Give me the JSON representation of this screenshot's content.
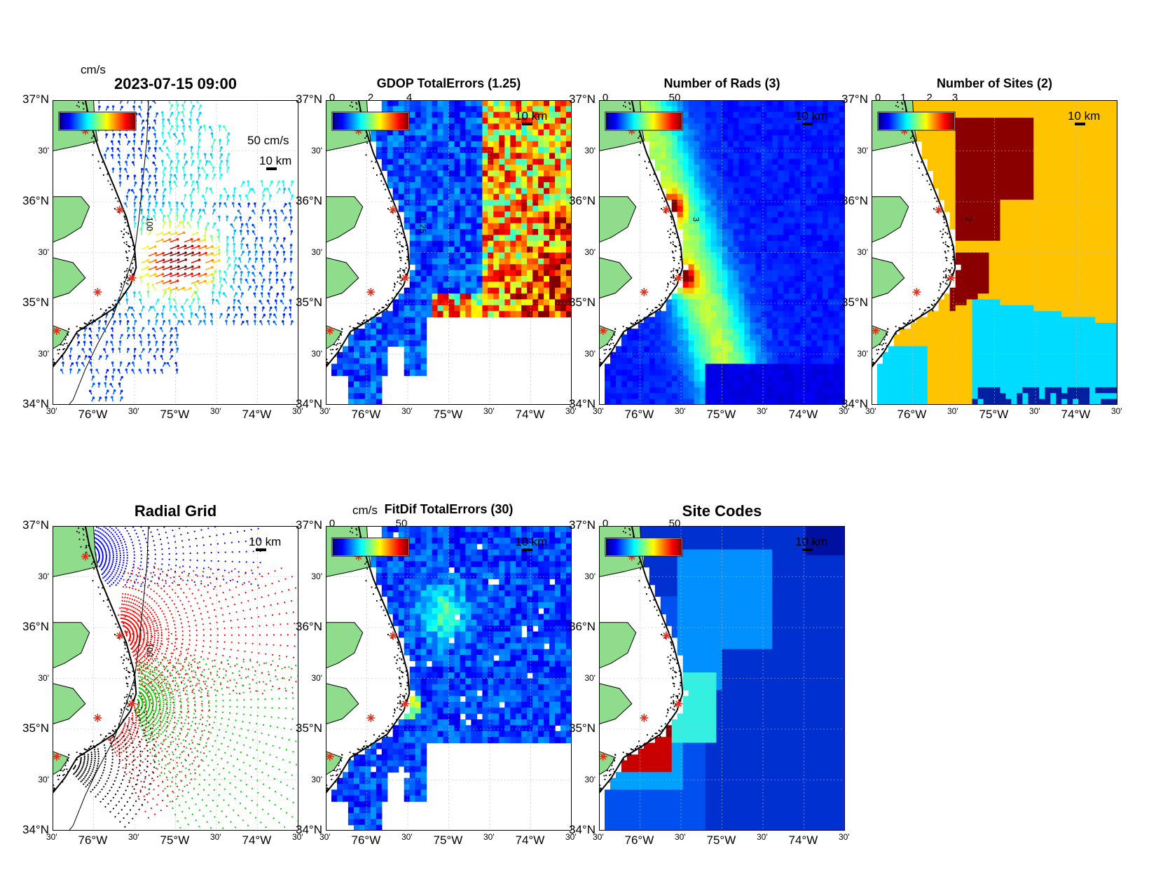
{
  "figure": {
    "axis_labels": {
      "lat": [
        "37°N",
        "30'",
        "36°N",
        "30'",
        "35°N",
        "30'",
        "34°N"
      ],
      "lon": [
        "30'",
        "76°W",
        "30'",
        "75°W",
        "30'",
        "74°W",
        "30'"
      ]
    },
    "scale_label": "10 km",
    "site_marker_color": "#e0301e",
    "land_color": "#8fdc8c",
    "panels": [
      {
        "id": "currents",
        "title": "2023-07-15 09:00",
        "unit": "cm/s",
        "cb_ticks": [],
        "extra_label": "50 cm/s",
        "contour_label": "100"
      },
      {
        "id": "gdop",
        "title": "GDOP TotalErrors (1.25)",
        "unit": "",
        "cb_ticks": [
          "0",
          "2",
          "4"
        ],
        "contour_label": "1.25"
      },
      {
        "id": "rads",
        "title": "Number of Rads (3)",
        "unit": "",
        "cb_ticks": [
          "0",
          "50"
        ],
        "contour_label": "3"
      },
      {
        "id": "sites",
        "title": "Number of Sites (2)",
        "unit": "",
        "cb_ticks": [
          "0",
          "1",
          "2",
          "3"
        ],
        "contour_label": "2"
      },
      {
        "id": "radial",
        "title": "Radial Grid",
        "unit": "",
        "cb_ticks": [],
        "contour_label": "100"
      },
      {
        "id": "fitdif",
        "title": "FitDif TotalErrors (30)",
        "unit": "cm/s",
        "cb_ticks": [
          "0",
          "50"
        ]
      },
      {
        "id": "codes",
        "title": "Site Codes",
        "unit": "",
        "cb_ticks": [
          "0",
          "50"
        ]
      }
    ]
  }
}
